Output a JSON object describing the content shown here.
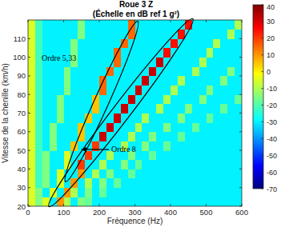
{
  "chart_data": {
    "type": "heatmap",
    "title": "Roue 3 Z",
    "subtitle": "(Échelle en dB ref 1 g²)",
    "x_label": "Fréquence (Hz)",
    "y_label": "Vitesse de la chenille (km/h)",
    "annotations": [
      "Ordre 5,33",
      "Ordre 8"
    ],
    "xlim": [
      0,
      600
    ],
    "xticks": [
      0,
      100,
      200,
      300,
      400,
      500,
      600
    ],
    "ylim": [
      20,
      120
    ],
    "yticks": [
      20,
      30,
      40,
      50,
      60,
      70,
      80,
      90,
      100,
      110
    ],
    "x_bins": [
      0,
      20,
      40,
      60,
      80,
      100,
      120,
      140,
      160,
      180,
      200,
      220,
      240,
      260,
      280,
      300,
      320,
      340,
      360,
      380,
      400,
      420,
      440,
      460,
      480,
      500,
      520,
      540,
      560,
      580,
      600
    ],
    "y_bins": [
      20,
      25,
      30,
      35,
      40,
      45,
      50,
      55,
      60,
      65,
      70,
      75,
      80,
      85,
      90,
      95,
      100,
      105,
      110,
      115,
      120
    ],
    "cells": [
      [
        -5,
        -15,
        -5,
        -30,
        10,
        -10,
        -30,
        -15,
        -18,
        -30,
        -30,
        -30,
        -30,
        -30,
        -30,
        -30,
        -30,
        -30,
        -30,
        -30,
        -30,
        -30,
        -30,
        -30,
        -30,
        -30,
        -30,
        -30,
        -30,
        -30
      ],
      [
        -5,
        -15,
        -30,
        -5,
        -30,
        10,
        -10,
        -30,
        -15,
        -30,
        -18,
        -30,
        -30,
        -30,
        -30,
        -30,
        -30,
        -30,
        -30,
        -30,
        -30,
        -30,
        -30,
        -30,
        -30,
        -30,
        -30,
        -30,
        -30,
        -30
      ],
      [
        -5,
        -22,
        -15,
        -30,
        -5,
        -30,
        10,
        -30,
        -10,
        -30,
        -15,
        -30,
        -18,
        -30,
        -30,
        -30,
        -30,
        -30,
        -30,
        -30,
        -30,
        -30,
        -30,
        -30,
        -30,
        -30,
        -30,
        -30,
        -30,
        -30
      ],
      [
        -5,
        -22,
        -15,
        -30,
        -5,
        -30,
        -30,
        10,
        -30,
        -10,
        -30,
        -15,
        -30,
        -30,
        -18,
        -30,
        -30,
        -30,
        -30,
        -30,
        -30,
        -30,
        -30,
        -30,
        -30,
        -30,
        -30,
        -30,
        -30,
        -30
      ],
      [
        -5,
        -22,
        -15,
        -30,
        -30,
        -5,
        -30,
        20,
        -30,
        -30,
        -10,
        -30,
        -30,
        -15,
        -30,
        -18,
        -30,
        -30,
        -30,
        -30,
        -30,
        -30,
        -30,
        -30,
        -30,
        -30,
        -30,
        -30,
        -30,
        -30
      ],
      [
        -5,
        -22,
        -15,
        -30,
        -30,
        -5,
        -30,
        -30,
        20,
        -30,
        -30,
        -10,
        -30,
        -30,
        -15,
        -30,
        -30,
        -18,
        -30,
        -30,
        -30,
        -30,
        -30,
        -30,
        -30,
        -30,
        -30,
        -30,
        -30,
        -30
      ],
      [
        -5,
        -22,
        -30,
        -15,
        -30,
        -30,
        5,
        -30,
        -30,
        20,
        -30,
        -30,
        -30,
        -10,
        -30,
        -30,
        -15,
        -30,
        -30,
        -18,
        -30,
        -30,
        -30,
        -30,
        -30,
        -30,
        -30,
        -30,
        -30,
        -30
      ],
      [
        -5,
        -22,
        -30,
        -15,
        -30,
        -30,
        -30,
        5,
        -30,
        -30,
        32,
        -30,
        -30,
        -30,
        -10,
        -30,
        -30,
        -15,
        -30,
        -30,
        -30,
        -18,
        -30,
        -30,
        -30,
        -30,
        -30,
        -30,
        -30,
        -30
      ],
      [
        -5,
        -22,
        -30,
        -15,
        -30,
        -30,
        -30,
        5,
        -30,
        -30,
        -30,
        32,
        -30,
        -30,
        -30,
        -10,
        -30,
        -30,
        -30,
        -15,
        -30,
        -30,
        -30,
        -18,
        -30,
        -30,
        -30,
        -30,
        -30,
        -30
      ],
      [
        -5,
        -22,
        -30,
        -30,
        -15,
        -30,
        -30,
        -30,
        5,
        -30,
        -30,
        -30,
        32,
        -30,
        -30,
        -30,
        -10,
        -30,
        -30,
        -30,
        -30,
        -15,
        -30,
        -30,
        -30,
        -18,
        -30,
        -30,
        -30,
        -30
      ],
      [
        -5,
        -22,
        -30,
        -30,
        -15,
        -30,
        -30,
        -30,
        -30,
        5,
        -30,
        -30,
        -30,
        32,
        -30,
        -30,
        -30,
        -30,
        -10,
        -30,
        -30,
        -30,
        -15,
        -30,
        -30,
        -30,
        -30,
        -18,
        -30,
        -30
      ],
      [
        -5,
        -22,
        -30,
        -30,
        -15,
        -30,
        -30,
        -30,
        -30,
        5,
        -30,
        -30,
        -30,
        -30,
        32,
        -30,
        -30,
        -30,
        -30,
        -10,
        -30,
        -30,
        -30,
        -30,
        -15,
        -30,
        -30,
        -30,
        -30,
        -18
      ],
      [
        -5,
        -22,
        -30,
        -30,
        -30,
        -15,
        -30,
        -30,
        -30,
        -30,
        15,
        -30,
        -30,
        -30,
        -30,
        32,
        -30,
        -30,
        -30,
        -30,
        -10,
        -30,
        -30,
        -30,
        -30,
        -15,
        -30,
        -30,
        -30,
        -30
      ],
      [
        -5,
        -22,
        -30,
        -30,
        -30,
        -15,
        -30,
        -30,
        -30,
        -30,
        15,
        -30,
        -30,
        -30,
        -30,
        -30,
        32,
        -30,
        -30,
        -30,
        -30,
        -10,
        -30,
        -30,
        -30,
        -30,
        -30,
        -15,
        -30,
        -30
      ],
      [
        -5,
        -22,
        -30,
        -30,
        -30,
        -15,
        -30,
        -30,
        -30,
        -30,
        -30,
        15,
        -30,
        -30,
        -30,
        -30,
        -30,
        32,
        -30,
        -30,
        -30,
        -30,
        -30,
        -10,
        -30,
        -30,
        -30,
        -30,
        -15,
        -30
      ],
      [
        -5,
        -22,
        -30,
        -30,
        -30,
        -30,
        -15,
        -30,
        -30,
        -30,
        -30,
        -30,
        15,
        -30,
        -30,
        -30,
        -30,
        -30,
        32,
        -30,
        -30,
        -30,
        -30,
        -30,
        -10,
        -30,
        -30,
        -30,
        -30,
        -30
      ],
      [
        -5,
        -22,
        -30,
        -30,
        -30,
        -30,
        -15,
        -30,
        -30,
        -30,
        -30,
        -30,
        15,
        -30,
        -30,
        -30,
        -30,
        -30,
        -30,
        25,
        -30,
        -30,
        -30,
        -30,
        -30,
        -10,
        -30,
        -30,
        -30,
        -30
      ],
      [
        -5,
        -22,
        -30,
        -30,
        -30,
        -30,
        -15,
        -30,
        -30,
        -30,
        -30,
        -30,
        -30,
        15,
        -30,
        -30,
        -30,
        -30,
        -30,
        -30,
        25,
        -30,
        -30,
        -30,
        -30,
        -30,
        -10,
        -30,
        -30,
        -30
      ],
      [
        -5,
        -22,
        -30,
        -30,
        -30,
        -30,
        -30,
        -15,
        -30,
        -30,
        -30,
        -30,
        -30,
        -30,
        15,
        -30,
        -30,
        -30,
        -30,
        -30,
        -30,
        25,
        -30,
        -30,
        -30,
        -30,
        -30,
        -30,
        -10,
        -30
      ],
      [
        -5,
        -22,
        -30,
        -30,
        -30,
        -30,
        -30,
        -15,
        -30,
        -30,
        -30,
        -30,
        -30,
        -30,
        15,
        -30,
        -30,
        -30,
        -30,
        -30,
        -30,
        -30,
        25,
        -30,
        -30,
        -30,
        -30,
        -30,
        -30,
        -10
      ]
    ],
    "colorbar_lim": [
      -70,
      40
    ],
    "colorbar_ticks": [
      -70,
      -60,
      -50,
      -40,
      -30,
      -20,
      -10,
      0,
      10,
      20,
      30,
      40
    ]
  }
}
